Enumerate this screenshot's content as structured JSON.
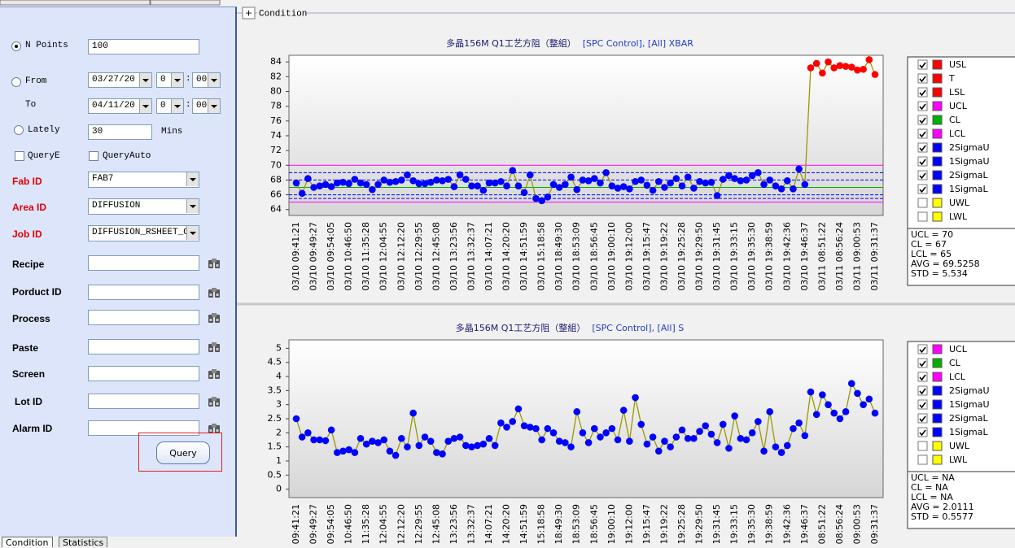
{
  "header": {
    "expand": "+",
    "title": "Condition"
  },
  "form": {
    "n_points": {
      "label": "N Points",
      "value": "100"
    },
    "from": {
      "label": "From",
      "date": "03/27/20",
      "hour": "0",
      "minute": "00"
    },
    "to": {
      "label": "To",
      "date": "04/11/20",
      "hour": "0",
      "minute": "00"
    },
    "time_separator": ":",
    "lately": {
      "label": "Lately",
      "value": "30",
      "unit": "Mins"
    },
    "query_e": "QueryE",
    "query_auto": "QueryAuto",
    "selects": [
      {
        "label": "Fab ID",
        "value": "FAB7"
      },
      {
        "label": "Area ID",
        "value": "DIFFUSION"
      },
      {
        "label": "Job ID",
        "value": "DIFFUSION_RSHEET_OC"
      }
    ],
    "fields": [
      "Recipe",
      "Porduct ID",
      "Process",
      "Paste",
      "Screen",
      "Lot ID",
      "Alarm ID"
    ],
    "button": "Query"
  },
  "tabs": [
    "Condition",
    "Statistics"
  ],
  "chart_data": [
    {
      "type": "line",
      "title": "多晶156M Q1工艺方阻（整組）",
      "subtitle": "[SPC Control], [All] XBAR",
      "categories": [
        "03/10 09:41:21",
        null,
        null,
        "03/10 09:49:27",
        null,
        null,
        "03/10 09:54:05",
        null,
        null,
        "03/10 10:46:50",
        null,
        null,
        "03/10 11:35:28",
        null,
        null,
        "03/10 12:04:55",
        null,
        null,
        "03/10 12:12:20",
        null,
        null,
        "03/10 12:29:55",
        null,
        null,
        "03/10 12:45:08",
        null,
        null,
        "03/10 13:23:56",
        null,
        null,
        "03/10 13:32:37",
        null,
        null,
        "03/10 14:07:21",
        null,
        null,
        "03/10 14:20:20",
        null,
        null,
        "03/10 14:51:59",
        null,
        null,
        "03/10 15:18:58",
        null,
        null,
        "03/10 18:49:30",
        null,
        null,
        "03/10 18:53:09",
        null,
        null,
        "03/10 18:56:45",
        null,
        null,
        "03/10 19:00:10",
        null,
        null,
        "03/10 19:12:00",
        null,
        null,
        "03/10 19:15:47",
        null,
        null,
        "03/10 19:19:22",
        null,
        null,
        "03/10 19:25:28",
        null,
        null,
        "03/10 19:29:50",
        null,
        null,
        "03/10 19:31:45",
        null,
        null,
        "03/10 19:33:15",
        null,
        null,
        "03/10 19:35:30",
        null,
        null,
        "03/10 19:38:59",
        null,
        null,
        "03/10 19:42:36",
        null,
        null,
        "03/10 19:46:37",
        null,
        null,
        "03/11 08:51:22",
        null,
        null,
        "03/11 08:56:24",
        null,
        null,
        "03/11 09:00:53",
        null,
        null,
        "03/11 09:31:37"
      ],
      "series": [
        {
          "color": "#0000ff",
          "line_color": "#999900",
          "out_of_control_color": "#ff0000",
          "values": [
            67.6,
            66.2,
            68.2,
            67.0,
            67.2,
            67.4,
            67.1,
            67.6,
            67.7,
            67.5,
            68.1,
            67.6,
            67.4,
            66.7,
            67.4,
            68.0,
            67.7,
            67.8,
            68.0,
            68.7,
            67.9,
            67.5,
            67.5,
            67.7,
            68.0,
            67.9,
            68.1,
            67.1,
            68.7,
            68.1,
            67.2,
            67.2,
            66.6,
            67.6,
            67.6,
            67.8,
            67.2,
            69.3,
            67.2,
            66.3,
            68.7,
            65.5,
            65.2,
            65.7,
            67.4,
            67.0,
            67.4,
            68.4,
            66.7,
            68.0,
            67.9,
            68.2,
            67.6,
            69.0,
            67.2,
            66.9,
            67.1,
            66.8,
            67.8,
            68.0,
            67.3,
            66.6,
            67.8,
            67.0,
            67.6,
            68.2,
            67.2,
            68.4,
            66.9,
            67.8,
            67.6,
            67.7,
            65.9,
            68.1,
            68.6,
            68.2,
            67.9,
            68.0,
            68.6,
            69.0,
            67.4,
            68.0,
            67.2,
            66.8,
            67.9,
            66.8,
            69.5,
            67.4,
            83.2,
            83.8,
            82.5,
            84.0,
            83.2,
            83.5,
            83.4,
            83.3,
            82.9,
            83.0,
            84.3,
            82.3
          ]
        }
      ],
      "ylim": [
        63.2,
        84.9
      ],
      "yticks": [
        64,
        66,
        68,
        70,
        72,
        74,
        76,
        78,
        80,
        82,
        84
      ],
      "legend": [
        {
          "name": "USL",
          "color": "#ff0000",
          "checked": true
        },
        {
          "name": "T",
          "color": "#ff0000",
          "checked": true
        },
        {
          "name": "LSL",
          "color": "#ff0000",
          "checked": true
        },
        {
          "name": "UCL",
          "color": "#ff00ff",
          "checked": true,
          "value": 70
        },
        {
          "name": "CL",
          "color": "#00b000",
          "checked": true,
          "value": 67
        },
        {
          "name": "LCL",
          "color": "#ff00ff",
          "checked": true,
          "value": 65
        },
        {
          "name": "2SigmaU",
          "color": "#0000ff",
          "checked": true,
          "value": 69,
          "dashed": true
        },
        {
          "name": "1SigmaU",
          "color": "#0000ff",
          "checked": true,
          "value": 68,
          "dashed": true
        },
        {
          "name": "2SigmaL",
          "color": "#0000ff",
          "checked": true,
          "value": 65.5,
          "dashed": true
        },
        {
          "name": "1SigmaL",
          "color": "#0000ff",
          "checked": true,
          "value": 66,
          "dashed": true
        },
        {
          "name": "UWL",
          "color": "#ffff00",
          "checked": false
        },
        {
          "name": "LWL",
          "color": "#ffff00",
          "checked": false
        }
      ],
      "stats": [
        "UCL = 70",
        "CL = 67",
        "LCL = 65",
        "AVG = 69.5258",
        "STD = 5.534"
      ]
    },
    {
      "type": "line",
      "title": "多晶156M Q1工艺方阻（整組）",
      "subtitle": "[SPC Control], [All] S",
      "categories": [
        "03/10 09:41:21",
        null,
        null,
        "03/10 09:49:27",
        null,
        null,
        "03/10 09:54:05",
        null,
        null,
        "03/10 10:46:50",
        null,
        null,
        "03/10 11:35:28",
        null,
        null,
        "03/10 12:04:55",
        null,
        null,
        "03/10 12:12:20",
        null,
        null,
        "03/10 12:29:55",
        null,
        null,
        "03/10 12:45:08",
        null,
        null,
        "03/10 13:23:56",
        null,
        null,
        "03/10 13:32:37",
        null,
        null,
        "03/10 14:07:21",
        null,
        null,
        "03/10 14:20:20",
        null,
        null,
        "03/10 14:51:59",
        null,
        null,
        "03/10 15:18:58",
        null,
        null,
        "03/10 18:49:30",
        null,
        null,
        "03/10 18:53:09",
        null,
        null,
        "03/10 18:56:45",
        null,
        null,
        "03/10 19:00:10",
        null,
        null,
        "03/10 19:12:00",
        null,
        null,
        "03/10 19:15:47",
        null,
        null,
        "03/10 19:19:22",
        null,
        null,
        "03/10 19:25:28",
        null,
        null,
        "03/10 19:29:50",
        null,
        null,
        "03/10 19:31:45",
        null,
        null,
        "03/10 19:33:15",
        null,
        null,
        "03/10 19:35:30",
        null,
        null,
        "03/10 19:38:59",
        null,
        null,
        "03/10 19:42:36",
        null,
        null,
        "03/10 19:46:37",
        null,
        null,
        "03/11 08:51:22",
        null,
        null,
        "03/11 08:56:24",
        null,
        null,
        "03/11 09:00:53",
        null,
        null,
        "03/11 09:31:37"
      ],
      "series": [
        {
          "color": "#0000ff",
          "line_color": "#999900",
          "values": [
            2.5,
            1.85,
            2.0,
            1.75,
            1.75,
            1.72,
            2.1,
            1.3,
            1.35,
            1.4,
            1.3,
            1.8,
            1.6,
            1.7,
            1.65,
            1.75,
            1.35,
            1.2,
            1.8,
            1.5,
            2.7,
            1.55,
            1.85,
            1.7,
            1.3,
            1.25,
            1.7,
            1.8,
            1.85,
            1.55,
            1.5,
            1.55,
            1.6,
            1.8,
            1.55,
            2.35,
            2.2,
            2.4,
            2.85,
            2.25,
            2.2,
            2.15,
            1.75,
            2.15,
            2.0,
            1.7,
            1.65,
            1.5,
            2.75,
            2.0,
            1.65,
            2.15,
            1.85,
            2.0,
            2.15,
            1.75,
            2.8,
            1.7,
            3.25,
            2.3,
            1.6,
            1.85,
            1.35,
            1.7,
            1.5,
            1.85,
            2.1,
            1.8,
            1.8,
            2.05,
            2.25,
            1.95,
            1.65,
            2.3,
            1.45,
            2.6,
            1.8,
            1.75,
            2.0,
            2.4,
            1.35,
            2.75,
            1.5,
            1.3,
            1.55,
            2.15,
            2.35,
            1.9,
            3.45,
            2.65,
            3.35,
            3.0,
            2.7,
            2.5,
            2.75,
            3.75,
            3.4,
            3.0,
            3.2,
            2.7
          ]
        }
      ],
      "ylim": [
        -0.3,
        5.3
      ],
      "yticks": [
        0,
        0.5,
        1,
        1.5,
        2,
        2.5,
        3,
        3.5,
        4,
        4.5,
        5
      ],
      "legend": [
        {
          "name": "UCL",
          "color": "#ff00ff",
          "checked": true
        },
        {
          "name": "CL",
          "color": "#00b000",
          "checked": true
        },
        {
          "name": "LCL",
          "color": "#ff00ff",
          "checked": true
        },
        {
          "name": "2SigmaU",
          "color": "#0000ff",
          "checked": true
        },
        {
          "name": "1SigmaU",
          "color": "#0000ff",
          "checked": true
        },
        {
          "name": "2SigmaL",
          "color": "#0000ff",
          "checked": true
        },
        {
          "name": "1SigmaL",
          "color": "#0000ff",
          "checked": true
        },
        {
          "name": "UWL",
          "color": "#ffff00",
          "checked": false
        },
        {
          "name": "LWL",
          "color": "#ffff00",
          "checked": false
        }
      ],
      "stats": [
        "UCL = NA",
        "CL = NA",
        "LCL = NA",
        "AVG = 2.0111",
        "STD = 0.5577"
      ]
    }
  ]
}
